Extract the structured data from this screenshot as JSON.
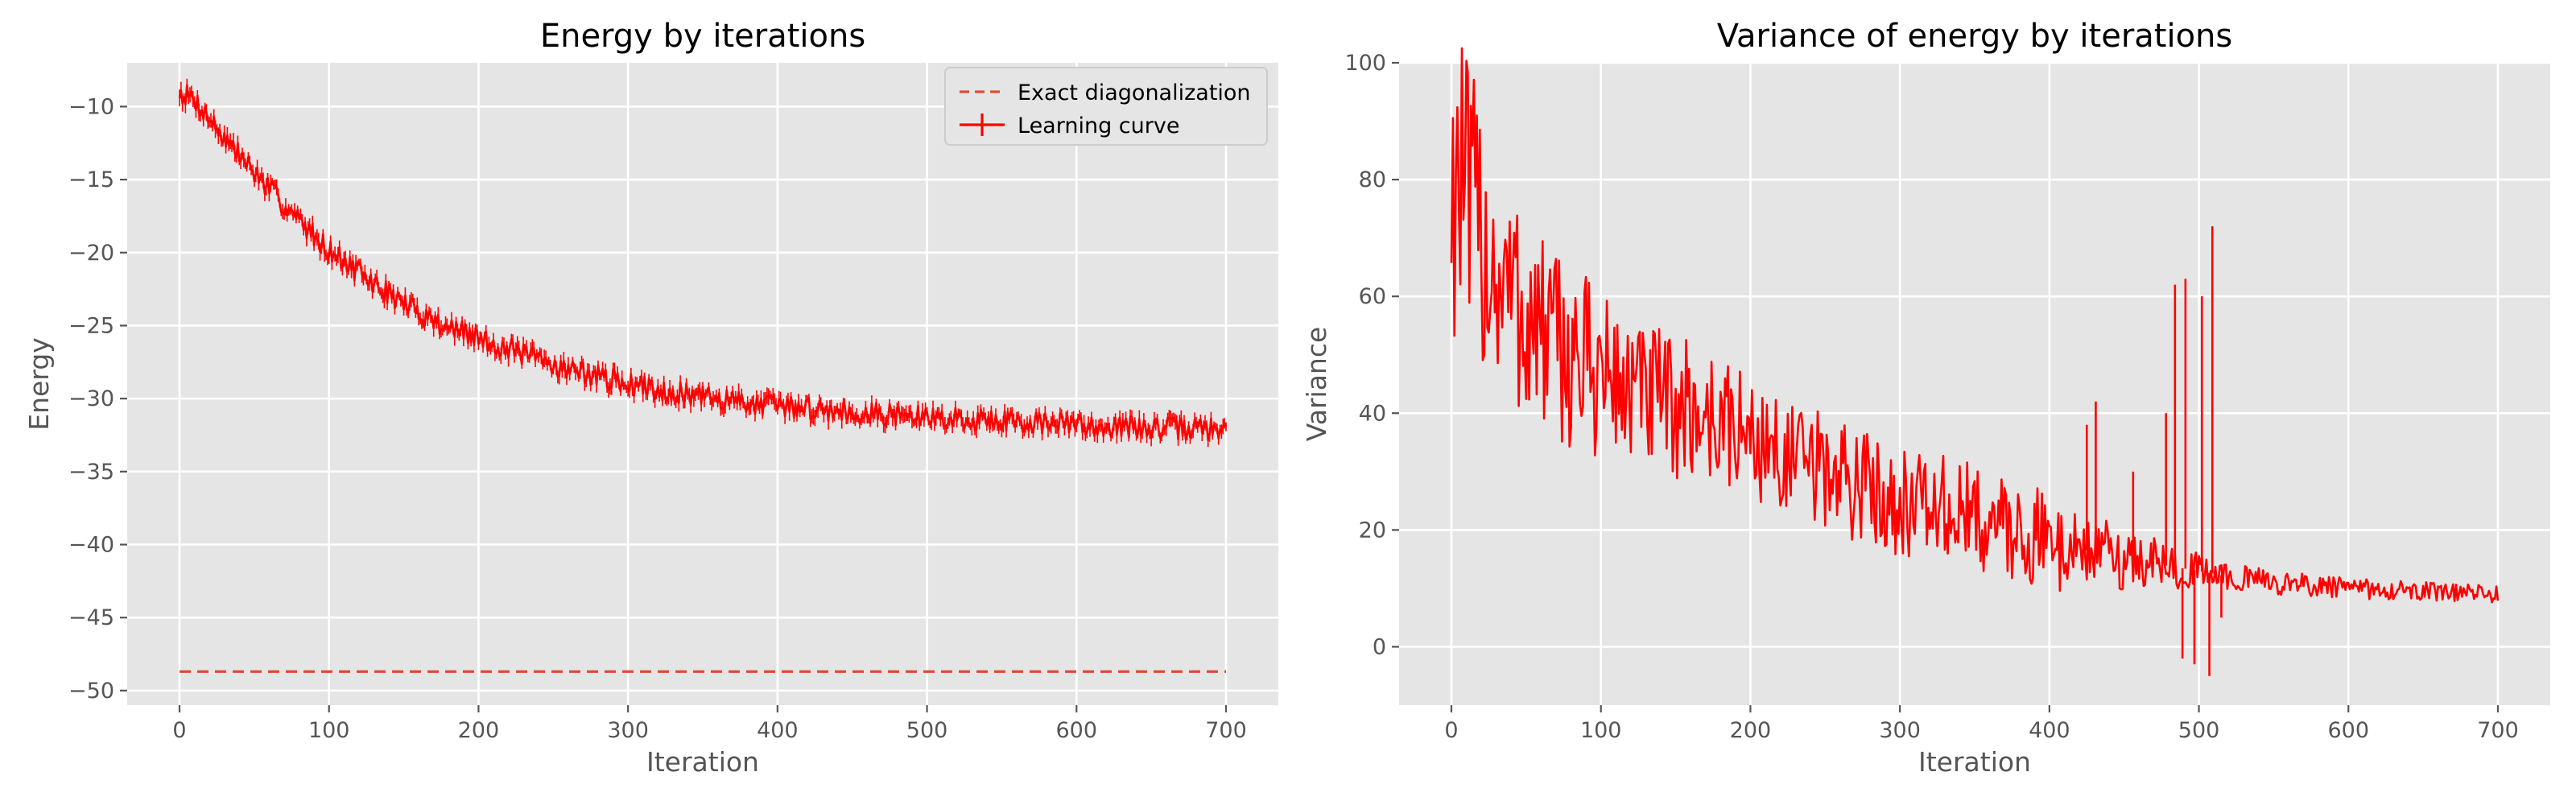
{
  "colors": {
    "curve": "#ff0000",
    "exact": "#e24a33",
    "panel": "#e5e5e5",
    "grid": "#ffffff",
    "text": "#555555"
  },
  "chart_data": [
    {
      "type": "line",
      "title": "Energy by iterations",
      "xlabel": "Iteration",
      "ylabel": "Energy",
      "xlim": [
        -35,
        735
      ],
      "ylim": [
        -51,
        -7
      ],
      "xticks": [
        0,
        100,
        200,
        300,
        400,
        500,
        600,
        700
      ],
      "yticks": [
        -10,
        -15,
        -20,
        -25,
        -30,
        -35,
        -40,
        -45,
        -50
      ],
      "grid": true,
      "legend": {
        "position": "top-right",
        "entries": [
          "Exact diagonalization",
          "Learning curve"
        ]
      },
      "series": [
        {
          "name": "Learning curve",
          "style": "solid-errorbar",
          "x": [
            0,
            10,
            25,
            50,
            75,
            100,
            125,
            150,
            175,
            200,
            250,
            300,
            350,
            400,
            450,
            500,
            550,
            600,
            650,
            700
          ],
          "y": [
            -9.0,
            -9.5,
            -11.5,
            -14.5,
            -17.3,
            -19.8,
            -21.8,
            -23.5,
            -24.9,
            -25.9,
            -27.7,
            -29.0,
            -29.9,
            -30.5,
            -30.9,
            -31.3,
            -31.5,
            -31.8,
            -32.0,
            -32.1
          ],
          "noise": 0.35
        },
        {
          "name": "Exact diagonalization",
          "style": "dashed",
          "x": [
            0,
            700
          ],
          "y": [
            -48.7,
            -48.7
          ]
        }
      ]
    },
    {
      "type": "line",
      "title": "Variance of energy by iterations",
      "xlabel": "Iteration",
      "ylabel": "Variance",
      "xlim": [
        -35,
        735
      ],
      "ylim": [
        -10,
        100
      ],
      "xticks": [
        0,
        100,
        200,
        300,
        400,
        500,
        600,
        700
      ],
      "yticks": [
        0,
        20,
        40,
        60,
        80,
        100
      ],
      "grid": true,
      "series": [
        {
          "name": "Variance",
          "style": "solid",
          "x": [
            0,
            5,
            10,
            20,
            30,
            50,
            75,
            100,
            125,
            150,
            175,
            200,
            225,
            250,
            300,
            350,
            400,
            450,
            500,
            520,
            550,
            600,
            650,
            700
          ],
          "y": [
            78,
            82,
            75,
            70,
            64,
            56,
            50,
            47,
            43,
            41,
            39,
            36,
            32,
            30,
            25,
            22,
            18,
            15,
            13,
            12,
            11,
            10,
            9.5,
            9
          ],
          "noise": [
            [
              0,
              0.22
            ],
            [
              200,
              0.18
            ],
            [
              400,
              0.3
            ],
            [
              520,
              0.12
            ],
            [
              700,
              0.1
            ]
          ],
          "spikes": [
            {
              "x": 425,
              "y": 38
            },
            {
              "x": 431,
              "y": 42
            },
            {
              "x": 456,
              "y": 30
            },
            {
              "x": 478,
              "y": 40
            },
            {
              "x": 484,
              "y": 62
            },
            {
              "x": 489,
              "y": -2
            },
            {
              "x": 491,
              "y": 63
            },
            {
              "x": 497,
              "y": -3
            },
            {
              "x": 502,
              "y": 60
            },
            {
              "x": 507,
              "y": -5
            },
            {
              "x": 509,
              "y": 72
            },
            {
              "x": 515,
              "y": 5
            }
          ]
        }
      ]
    }
  ]
}
